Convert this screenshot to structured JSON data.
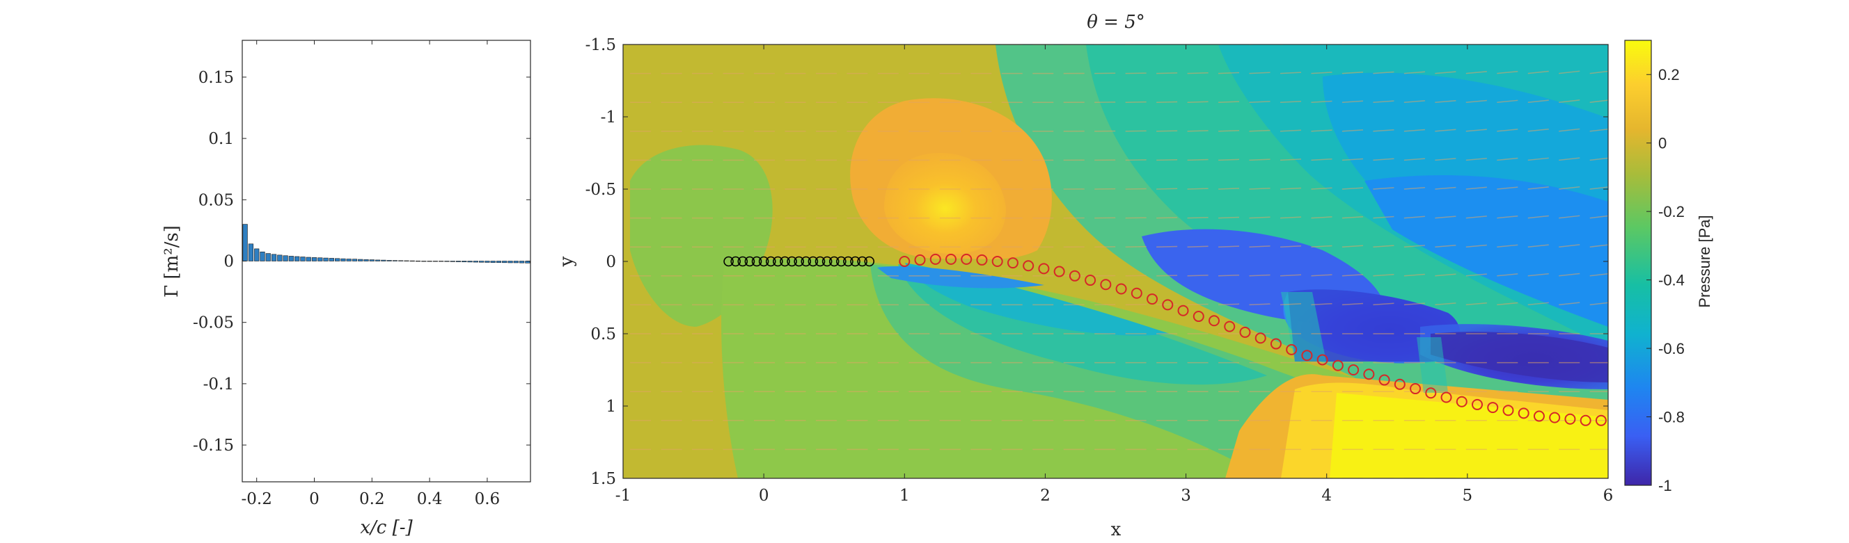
{
  "left_plot": {
    "ylabel": "Γ [m²/s]",
    "xlabel": "x/c [-]"
  },
  "right_plot": {
    "title": "θ = 5°",
    "xlabel": "x",
    "ylabel": "y",
    "colorbar_label": "Pressure [Pa]"
  },
  "chart_data": [
    {
      "type": "bar",
      "xlabel": "x/c [-]",
      "ylabel": "Γ [m²/s]",
      "xlim": [
        -0.25,
        0.75
      ],
      "ylim": [
        -0.18,
        0.18
      ],
      "xticks": [
        -0.2,
        0,
        0.2,
        0.4,
        0.6
      ],
      "xtick_labels": [
        "-0.2",
        "0",
        "0.2",
        "0.4",
        "0.6"
      ],
      "yticks": [
        0.15,
        0.1,
        0.05,
        0,
        -0.05,
        -0.1,
        -0.15
      ],
      "ytick_labels": [
        "0.15",
        "0.1",
        "0.05",
        "0",
        "-0.05",
        "-0.1",
        "-0.15"
      ],
      "bar_color": "#2f7fc1",
      "x": [
        -0.24,
        -0.22,
        -0.2,
        -0.18,
        -0.16,
        -0.14,
        -0.12,
        -0.1,
        -0.08,
        -0.06,
        -0.04,
        -0.02,
        0,
        0.02,
        0.04,
        0.06,
        0.08,
        0.1,
        0.12,
        0.14,
        0.16,
        0.18,
        0.2,
        0.22,
        0.24,
        0.26,
        0.28,
        0.3,
        0.32,
        0.34,
        0.36,
        0.38,
        0.4,
        0.42,
        0.44,
        0.46,
        0.48,
        0.5,
        0.52,
        0.54,
        0.56,
        0.58,
        0.6,
        0.62,
        0.64,
        0.66,
        0.68,
        0.7,
        0.72,
        0.74
      ],
      "values": [
        0.03,
        0.014,
        0.01,
        0.0075,
        0.0062,
        0.0055,
        0.0049,
        0.0044,
        0.004,
        0.0037,
        0.0034,
        0.0031,
        0.0029,
        0.0027,
        0.0025,
        0.0023,
        0.0021,
        0.0019,
        0.0017,
        0.0016,
        0.0014,
        0.0012,
        0.0011,
        0.0009,
        0.0008,
        0.0006,
        0.0005,
        0.0004,
        0.0003,
        0.0002,
        0.0001,
        0.0,
        -0.0001,
        -0.0002,
        -0.0003,
        -0.0004,
        -0.0005,
        -0.0006,
        -0.0007,
        -0.0008,
        -0.0009,
        -0.001,
        -0.0011,
        -0.0012,
        -0.0012,
        -0.0013,
        -0.0014,
        -0.0014,
        -0.0015,
        -0.0016
      ]
    },
    {
      "type": "heatmap",
      "title": "θ = 5°",
      "xlabel": "x",
      "ylabel": "y",
      "xlim": [
        -1,
        6
      ],
      "ylim": [
        -1.5,
        1.5
      ],
      "y_axis_reversed": true,
      "xticks": [
        -1,
        0,
        1,
        2,
        3,
        4,
        5,
        6
      ],
      "xtick_labels": [
        "-1",
        "0",
        "1",
        "2",
        "3",
        "4",
        "5",
        "6"
      ],
      "yticks": [
        -1.5,
        -1,
        -0.5,
        0,
        0.5,
        1,
        1.5
      ],
      "ytick_labels": [
        "-1.5",
        "-1",
        "-0.5",
        "0",
        "0.5",
        "1",
        "1.5"
      ],
      "colorbar": {
        "label": "Pressure [Pa]",
        "range": [
          -1,
          0.3
        ],
        "ticks": [
          0.2,
          0,
          -0.2,
          -0.4,
          -0.6,
          -0.8,
          -1
        ],
        "tick_labels": [
          "0.2",
          "0",
          "-0.2",
          "-0.4",
          "-0.6",
          "-0.8",
          "-1"
        ],
        "colormap": "parula"
      },
      "plate_points": {
        "marker_color": "#000000",
        "x": [
          -0.25,
          -0.2,
          -0.15,
          -0.1,
          -0.05,
          0,
          0.05,
          0.1,
          0.15,
          0.2,
          0.25,
          0.3,
          0.35,
          0.4,
          0.45,
          0.5,
          0.55,
          0.6,
          0.65,
          0.7,
          0.75
        ],
        "y": [
          0,
          0,
          0,
          0,
          0,
          0,
          0,
          0,
          0,
          0,
          0,
          0,
          0,
          0,
          0,
          0,
          0,
          0,
          0,
          0,
          0
        ]
      },
      "wake_points": {
        "marker_color": "#d62728",
        "x": [
          1.0,
          1.11,
          1.22,
          1.33,
          1.44,
          1.55,
          1.66,
          1.77,
          1.88,
          1.99,
          2.1,
          2.21,
          2.32,
          2.43,
          2.54,
          2.65,
          2.76,
          2.87,
          2.98,
          3.09,
          3.2,
          3.31,
          3.42,
          3.53,
          3.64,
          3.75,
          3.86,
          3.97,
          4.08,
          4.19,
          4.3,
          4.41,
          4.52,
          4.63,
          4.74,
          4.85,
          4.96,
          5.07,
          5.18,
          5.29,
          5.4,
          5.51,
          5.62,
          5.73,
          5.84,
          5.95
        ],
        "y": [
          0.0,
          -0.01,
          -0.015,
          -0.015,
          -0.015,
          -0.01,
          0.0,
          0.01,
          0.03,
          0.05,
          0.07,
          0.1,
          0.13,
          0.16,
          0.19,
          0.22,
          0.26,
          0.3,
          0.34,
          0.38,
          0.41,
          0.45,
          0.49,
          0.53,
          0.57,
          0.61,
          0.65,
          0.68,
          0.72,
          0.75,
          0.78,
          0.82,
          0.85,
          0.88,
          0.91,
          0.94,
          0.97,
          0.99,
          1.01,
          1.03,
          1.05,
          1.07,
          1.08,
          1.09,
          1.1,
          1.1
        ]
      }
    }
  ]
}
